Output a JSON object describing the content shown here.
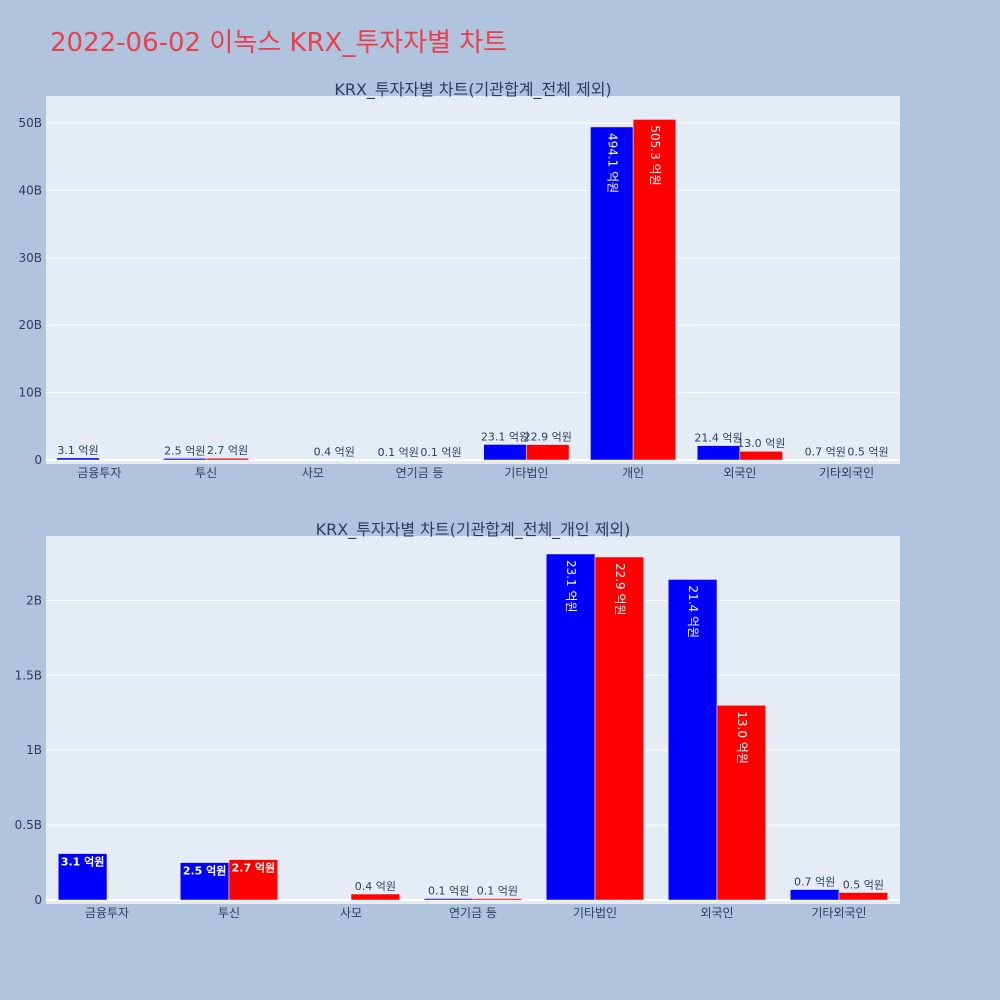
{
  "title": "2022-06-02 이녹스 KRX_투자자별 차트",
  "colors": {
    "buy": "#0000ff",
    "sell": "#ff0000",
    "plot_bg": "#e5ecf6",
    "page_bg": "#b0c4de",
    "title": "#e8404e"
  },
  "chart_data": [
    {
      "type": "bar",
      "title": "KRX_투자자별 차트(기관합계_전체 제외)",
      "categories": [
        "금융투자",
        "투신",
        "사모",
        "연기금 등",
        "기타법인",
        "개인",
        "외국인",
        "기타외국인"
      ],
      "series": [
        {
          "values": [
            0.31,
            0.25,
            0,
            0.01,
            2.31,
            49.41,
            2.14,
            0.07
          ],
          "labels": [
            "3.1 억원",
            "2.5 억원",
            "",
            "0.1 억원",
            "23.1 억원",
            "494.1 억원",
            "21.4 억원",
            "0.7 억원"
          ]
        },
        {
          "values": [
            0,
            0.27,
            0.04,
            0.01,
            2.29,
            50.53,
            1.3,
            0.05
          ],
          "labels": [
            "",
            "2.7 억원",
            "0.4 억원",
            "0.1 억원",
            "22.9 억원",
            "505.3 억원",
            "13.0 억원",
            "0.5 억원"
          ]
        }
      ],
      "y_unit": "B",
      "ylim": [
        0,
        54
      ],
      "yticks": [
        0,
        10,
        20,
        30,
        40,
        50
      ],
      "ytick_labels": [
        "0",
        "10B",
        "20B",
        "30B",
        "40B",
        "50B"
      ]
    },
    {
      "type": "bar",
      "title": "KRX_투자자별 차트(기관합계_전체_개인 제외)",
      "categories": [
        "금융투자",
        "투신",
        "사모",
        "연기금 등",
        "기타법인",
        "외국인",
        "기타외국인"
      ],
      "series": [
        {
          "values": [
            0.31,
            0.25,
            0,
            0.01,
            2.31,
            2.14,
            0.07
          ],
          "labels": [
            "3.1 억원",
            "2.5 억원",
            "",
            "0.1 억원",
            "23.1 억원",
            "21.4 억원",
            "0.7 억원"
          ]
        },
        {
          "values": [
            0,
            0.27,
            0.04,
            0.01,
            2.29,
            1.3,
            0.05
          ],
          "labels": [
            "",
            "2.7 억원",
            "0.4 억원",
            "0.1 억원",
            "22.9 억원",
            "13.0 억원",
            "0.5 억원"
          ]
        }
      ],
      "y_unit": "B",
      "ylim": [
        0,
        2.43
      ],
      "yticks": [
        0,
        0.5,
        1,
        1.5,
        2
      ],
      "ytick_labels": [
        "0",
        "0.5B",
        "1B",
        "1.5B",
        "2B"
      ]
    }
  ]
}
